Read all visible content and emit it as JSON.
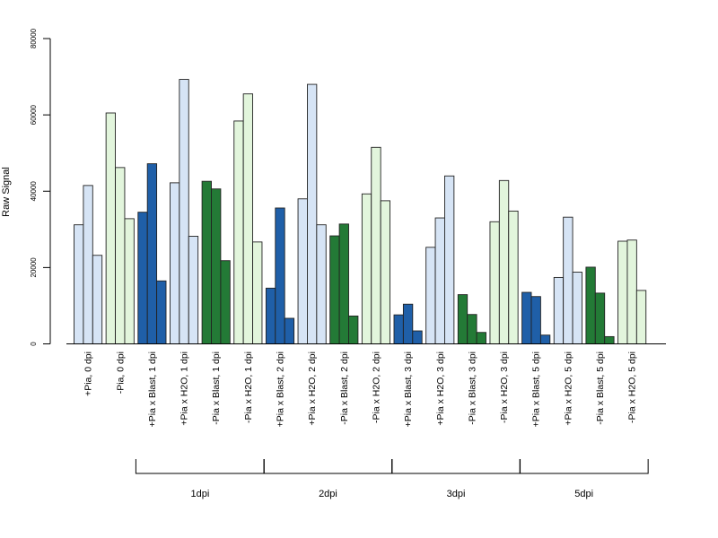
{
  "chart_data": {
    "type": "bar",
    "ylabel": "Raw Signal",
    "xlabel": "",
    "ylim": [
      0,
      80000
    ],
    "yticks": [
      0,
      20000,
      40000,
      60000,
      80000
    ],
    "grid": false,
    "colors": {
      "plus_pia_blast": "#1f5fa8",
      "plus_pia_mock": "#d6e4f5",
      "minus_pia_blast": "#237a36",
      "minus_pia_mock": "#e2f5dc"
    },
    "categories": [
      {
        "label": "+Pia, 0 dpi",
        "color": "plus_pia_mock",
        "values": [
          31200,
          41500,
          23200
        ]
      },
      {
        "label": "-Pia, 0 dpi",
        "color": "minus_pia_mock",
        "values": [
          60500,
          46200,
          32800
        ]
      },
      {
        "label": "+Pia x Blast, 1 dpi",
        "color": "plus_pia_blast",
        "values": [
          34500,
          47200,
          16500
        ]
      },
      {
        "label": "+Pia x H2O, 1 dpi",
        "color": "plus_pia_mock",
        "values": [
          42200,
          69300,
          28200
        ]
      },
      {
        "label": "-Pia x Blast, 1 dpi",
        "color": "minus_pia_blast",
        "values": [
          42600,
          40600,
          21800
        ]
      },
      {
        "label": "-Pia x H2O, 1 dpi",
        "color": "minus_pia_mock",
        "values": [
          58400,
          65500,
          26700
        ]
      },
      {
        "label": "+Pia x Blast, 2 dpi",
        "color": "plus_pia_blast",
        "values": [
          14600,
          35600,
          6700
        ]
      },
      {
        "label": "+Pia x H2O, 2 dpi",
        "color": "plus_pia_mock",
        "values": [
          38000,
          68000,
          31200
        ]
      },
      {
        "label": "-Pia x Blast, 2 dpi",
        "color": "minus_pia_blast",
        "values": [
          28300,
          31400,
          7300
        ]
      },
      {
        "label": "-Pia x H2O, 2 dpi",
        "color": "minus_pia_mock",
        "values": [
          39300,
          51500,
          37500
        ]
      },
      {
        "label": "+Pia x Blast, 3 dpi",
        "color": "plus_pia_blast",
        "values": [
          7600,
          10400,
          3400
        ]
      },
      {
        "label": "+Pia x H2O, 3 dpi",
        "color": "plus_pia_mock",
        "values": [
          25300,
          33000,
          44000
        ]
      },
      {
        "label": "-Pia x Blast, 3 dpi",
        "color": "minus_pia_blast",
        "values": [
          12900,
          7700,
          3000
        ]
      },
      {
        "label": "-Pia x H2O, 3 dpi",
        "color": "minus_pia_mock",
        "values": [
          32000,
          42800,
          34800
        ]
      },
      {
        "label": "+Pia x Blast, 5 dpi",
        "color": "plus_pia_blast",
        "values": [
          13500,
          12400,
          2300
        ]
      },
      {
        "label": "+Pia x H2O, 5 dpi",
        "color": "plus_pia_mock",
        "values": [
          17400,
          33200,
          18800
        ]
      },
      {
        "label": "-Pia x Blast, 5 dpi",
        "color": "minus_pia_blast",
        "values": [
          20100,
          13300,
          1900
        ]
      },
      {
        "label": "-Pia x H2O, 5 dpi",
        "color": "minus_pia_mock",
        "values": [
          26900,
          27200,
          14000
        ]
      }
    ],
    "groups": [
      {
        "label": "1dpi",
        "start_index": 2,
        "end_index": 5
      },
      {
        "label": "2dpi",
        "start_index": 6,
        "end_index": 9
      },
      {
        "label": "3dpi",
        "start_index": 10,
        "end_index": 13
      },
      {
        "label": "5dpi",
        "start_index": 14,
        "end_index": 17
      }
    ]
  }
}
